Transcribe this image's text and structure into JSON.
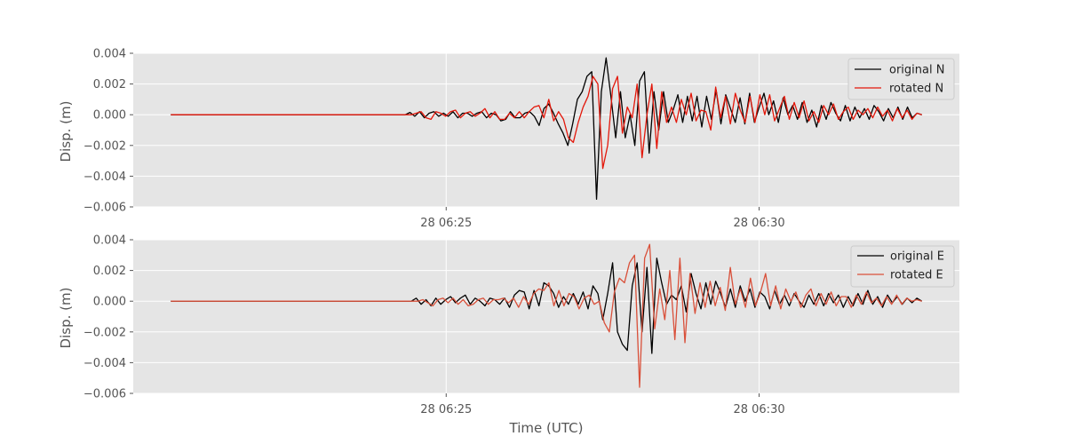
{
  "chart_data": {
    "type": "line",
    "xlabel": "Time (UTC)",
    "x_ticks": [
      "28 06:25",
      "28 06:30"
    ],
    "x_tick_minutes": [
      25,
      30
    ],
    "x_start_minute": 20.6,
    "x_end_minute": 32.6,
    "xlim_minutes": [
      20.0,
      33.2
    ],
    "y_ticks": [
      "0.004",
      "0.002",
      "0.000",
      "−0.002",
      "−0.004",
      "−0.006"
    ],
    "y_tick_values": [
      0.004,
      0.002,
      0.0,
      -0.002,
      -0.004,
      -0.006
    ],
    "grid": true,
    "legend_position": "top-right",
    "panels": [
      {
        "ylabel": "Disp. (m)",
        "ylim": [
          -0.006,
          0.004
        ],
        "series": [
          {
            "name": "original N",
            "color": "#000000",
            "values": [
              0,
              0,
              0,
              0,
              0,
              0,
              0,
              0,
              0,
              0,
              0,
              0,
              0,
              0,
              0,
              0,
              0,
              0,
              0,
              0,
              0,
              0,
              0,
              0,
              0,
              0,
              0,
              0,
              0,
              0,
              0,
              0,
              0,
              0,
              0,
              0,
              0,
              0,
              0,
              0,
              0,
              0,
              0,
              0,
              0,
              0,
              0,
              0,
              0,
              0,
              0.00015,
              -0.0001,
              0.0002,
              -0.0002,
              0.0001,
              0.0002,
              -0.0001,
              0.0001,
              -0.0001,
              0.0002,
              -0.0002,
              0.0001,
              0.0001,
              -0.0001,
              0.0001,
              0.0002,
              -0.0002,
              0.0001,
              0.0,
              -0.0004,
              -0.0003,
              0.0002,
              -0.0002,
              -0.0002,
              0.0001,
              0.0002,
              -0.0001,
              -0.0007,
              0.0004,
              0.0007,
              0.0001,
              -0.0006,
              -0.0012,
              -0.002,
              -0.0006,
              0.001,
              0.0015,
              0.0025,
              0.0028,
              -0.0055,
              0.0015,
              0.0037,
              0.0012,
              -0.0015,
              0.0015,
              -0.0015,
              0.0,
              -0.002,
              0.0022,
              0.0028,
              -0.0025,
              0.0015,
              -0.001,
              0.0015,
              -0.0005,
              0.0003,
              0.0013,
              -0.0005,
              0.0012,
              -0.0004,
              0.0012,
              -0.0008,
              0.0012,
              -0.0003,
              0.0016,
              -0.0006,
              0.0013,
              0.0004,
              -0.0005,
              0.0011,
              -0.0006,
              0.0014,
              -0.0005,
              0.0005,
              0.0014,
              0.0,
              0.0009,
              -0.0005,
              0.0011,
              0.0,
              0.0006,
              -0.0003,
              0.0008,
              -0.0005,
              0.0003,
              -0.0008,
              0.0006,
              -0.0003,
              0.0008,
              0.0001,
              -0.0004,
              0.0006,
              -0.0004,
              0.0005,
              -0.0002,
              0.0004,
              -0.0003,
              0.0006,
              0.0002,
              -0.0004,
              0.0004,
              -0.0002,
              0.0005,
              -0.0003,
              0.0005,
              -0.0002,
              0.0001,
              0.0
            ]
          },
          {
            "name": "rotated N",
            "color": "#e3170a",
            "values": [
              0,
              0,
              0,
              0,
              0,
              0,
              0,
              0,
              0,
              0,
              0,
              0,
              0,
              0,
              0,
              0,
              0,
              0,
              0,
              0,
              0,
              0,
              0,
              0,
              0,
              0,
              0,
              0,
              0,
              0,
              0,
              0,
              0,
              0,
              0,
              0,
              0,
              0,
              0,
              0,
              0,
              0,
              0,
              0,
              0,
              0,
              0,
              0,
              0,
              0,
              0.0001,
              0.0002,
              -0.0002,
              -0.0003,
              0.0002,
              0.0001,
              -0.0001,
              0.0002,
              0.0003,
              -0.0002,
              0.0001,
              0.0002,
              -0.0001,
              0.0001,
              0.0004,
              -0.0002,
              0.0002,
              -0.0003,
              -0.0003,
              0.0001,
              -0.0002,
              0.0002,
              -0.0002,
              0.0002,
              0.0005,
              0.0006,
              -0.0002,
              0.001,
              -0.0004,
              0.0002,
              -0.0003,
              -0.0015,
              -0.0018,
              -0.0005,
              0.0005,
              0.0012,
              0.0025,
              0.002,
              -0.0035,
              -0.002,
              0.0017,
              0.0025,
              -0.0012,
              0.0005,
              -0.0002,
              0.002,
              -0.0028,
              0.0,
              0.002,
              -0.0022,
              0.0015,
              -0.0005,
              0.0005,
              -0.0005,
              0.001,
              0.0,
              0.0014,
              -0.0004,
              0.0003,
              0.0002,
              -0.001,
              0.0018,
              -0.0002,
              0.0012,
              -0.0006,
              0.0014,
              0.0003,
              -0.0005,
              0.0012,
              -0.0005,
              0.0013,
              0.0,
              0.0013,
              -0.0004,
              0.0004,
              0.0012,
              -0.0003,
              0.0008,
              -0.0002,
              0.0009,
              -0.0004,
              0.0002,
              -0.0005,
              0.0006,
              0.0,
              0.0007,
              -0.0003,
              0.0002,
              0.0005,
              -0.0003,
              0.0003,
              0.0,
              0.0004,
              -0.0002,
              0.0005,
              -0.0001,
              0.0003,
              -0.0004,
              0.0004,
              -0.0002,
              0.0003,
              -0.0003,
              0.0001,
              0.0
            ]
          }
        ]
      },
      {
        "ylabel": "Disp. (m)",
        "ylim": [
          -0.006,
          0.004
        ],
        "series": [
          {
            "name": "original E",
            "color": "#000000",
            "values": [
              0,
              0,
              0,
              0,
              0,
              0,
              0,
              0,
              0,
              0,
              0,
              0,
              0,
              0,
              0,
              0,
              0,
              0,
              0,
              0,
              0,
              0,
              0,
              0,
              0,
              0,
              0,
              0,
              0,
              0,
              0,
              0,
              0,
              0,
              0,
              0,
              0,
              0,
              0,
              0,
              0,
              0,
              0,
              0,
              0,
              0,
              0,
              0,
              0,
              0,
              0.0002,
              -0.0002,
              0.0001,
              -0.0003,
              0.0002,
              -0.0002,
              0.0001,
              0.0003,
              -0.0001,
              0.0002,
              0.0004,
              -0.0002,
              0.0002,
              0.0,
              -0.0003,
              0.0002,
              0.0001,
              -0.0002,
              0.0002,
              -0.0004,
              0.0004,
              0.0007,
              0.0006,
              -0.0005,
              0.0007,
              -0.0003,
              0.0012,
              0.001,
              0.0005,
              -0.0004,
              0.0003,
              -0.0002,
              0.0005,
              -0.0002,
              0.0006,
              -0.0005,
              0.001,
              0.0005,
              -0.0012,
              0.0005,
              0.0025,
              -0.002,
              -0.0028,
              -0.0032,
              0.001,
              0.0025,
              -0.002,
              0.0022,
              -0.0034,
              0.0028,
              0.0012,
              -0.0002,
              0.0004,
              0.0001,
              0.001,
              -0.0007,
              0.0018,
              0.0005,
              -0.0005,
              0.0012,
              -0.0002,
              0.0013,
              0.0005,
              -0.0004,
              0.0008,
              -0.0004,
              0.001,
              0.0,
              0.0008,
              -0.0004,
              0.0006,
              0.0003,
              -0.0005,
              0.0007,
              -0.0002,
              0.0004,
              -0.0003,
              0.0005,
              0.0,
              -0.0004,
              0.0004,
              -0.0002,
              0.0005,
              -0.0003,
              0.0005,
              -0.0001,
              0.0004,
              -0.0004,
              0.0003,
              -0.0003,
              0.0005,
              -0.0002,
              0.0007,
              -0.0002,
              0.0003,
              -0.0004,
              0.0004,
              -0.0001,
              0.0003,
              -0.0002,
              0.0002,
              -0.0001,
              0.0002,
              0.0
            ]
          },
          {
            "name": "rotated E",
            "color": "#d9503a",
            "values": [
              0,
              0,
              0,
              0,
              0,
              0,
              0,
              0,
              0,
              0,
              0,
              0,
              0,
              0,
              0,
              0,
              0,
              0,
              0,
              0,
              0,
              0,
              0,
              0,
              0,
              0,
              0,
              0,
              0,
              0,
              0,
              0,
              0,
              0,
              0,
              0,
              0,
              0,
              0,
              0,
              0,
              0,
              0,
              0,
              0,
              0,
              0,
              0,
              0,
              0,
              0.0001,
              -0.0001,
              -0.0003,
              0.0001,
              0.0002,
              -0.0001,
              0.0002,
              -0.0002,
              0.0001,
              -0.0003,
              -0.0002,
              0.0001,
              0.0002,
              -0.0002,
              0.0001,
              0.0001,
              0.0002,
              -0.0001,
              0.0002,
              -0.0004,
              0.0003,
              -0.0002,
              0.0005,
              0.0008,
              0.0007,
              0.0012,
              -0.0003,
              0.0007,
              -0.0003,
              0.0005,
              0.0003,
              -0.0005,
              0.0002,
              0.0004,
              -0.0002,
              0.0,
              -0.0014,
              -0.002,
              0.0006,
              0.0015,
              0.0012,
              0.0025,
              0.003,
              -0.0056,
              0.0028,
              0.0037,
              -0.0018,
              0.0008,
              -0.0012,
              0.002,
              -0.0025,
              0.0028,
              -0.0027,
              0.0018,
              -0.0008,
              0.0012,
              -0.0004,
              0.0013,
              -0.0003,
              0.0009,
              -0.0006,
              0.0022,
              -0.0002,
              0.0008,
              -0.0004,
              0.0015,
              -0.0003,
              0.0006,
              0.0018,
              -0.0003,
              0.001,
              -0.0005,
              0.0008,
              0.0,
              0.0006,
              -0.0004,
              0.0004,
              0.0008,
              -0.0003,
              0.0005,
              -0.0002,
              0.0006,
              -0.0003,
              0.0003,
              0.0003,
              -0.0004,
              0.0004,
              -0.0002,
              0.0006,
              -0.0001,
              0.0002,
              -0.0003,
              0.0003,
              -0.0002,
              0.0004,
              -0.0002,
              0.0002,
              0.0,
              0.0001,
              0.0
            ]
          }
        ]
      }
    ]
  }
}
